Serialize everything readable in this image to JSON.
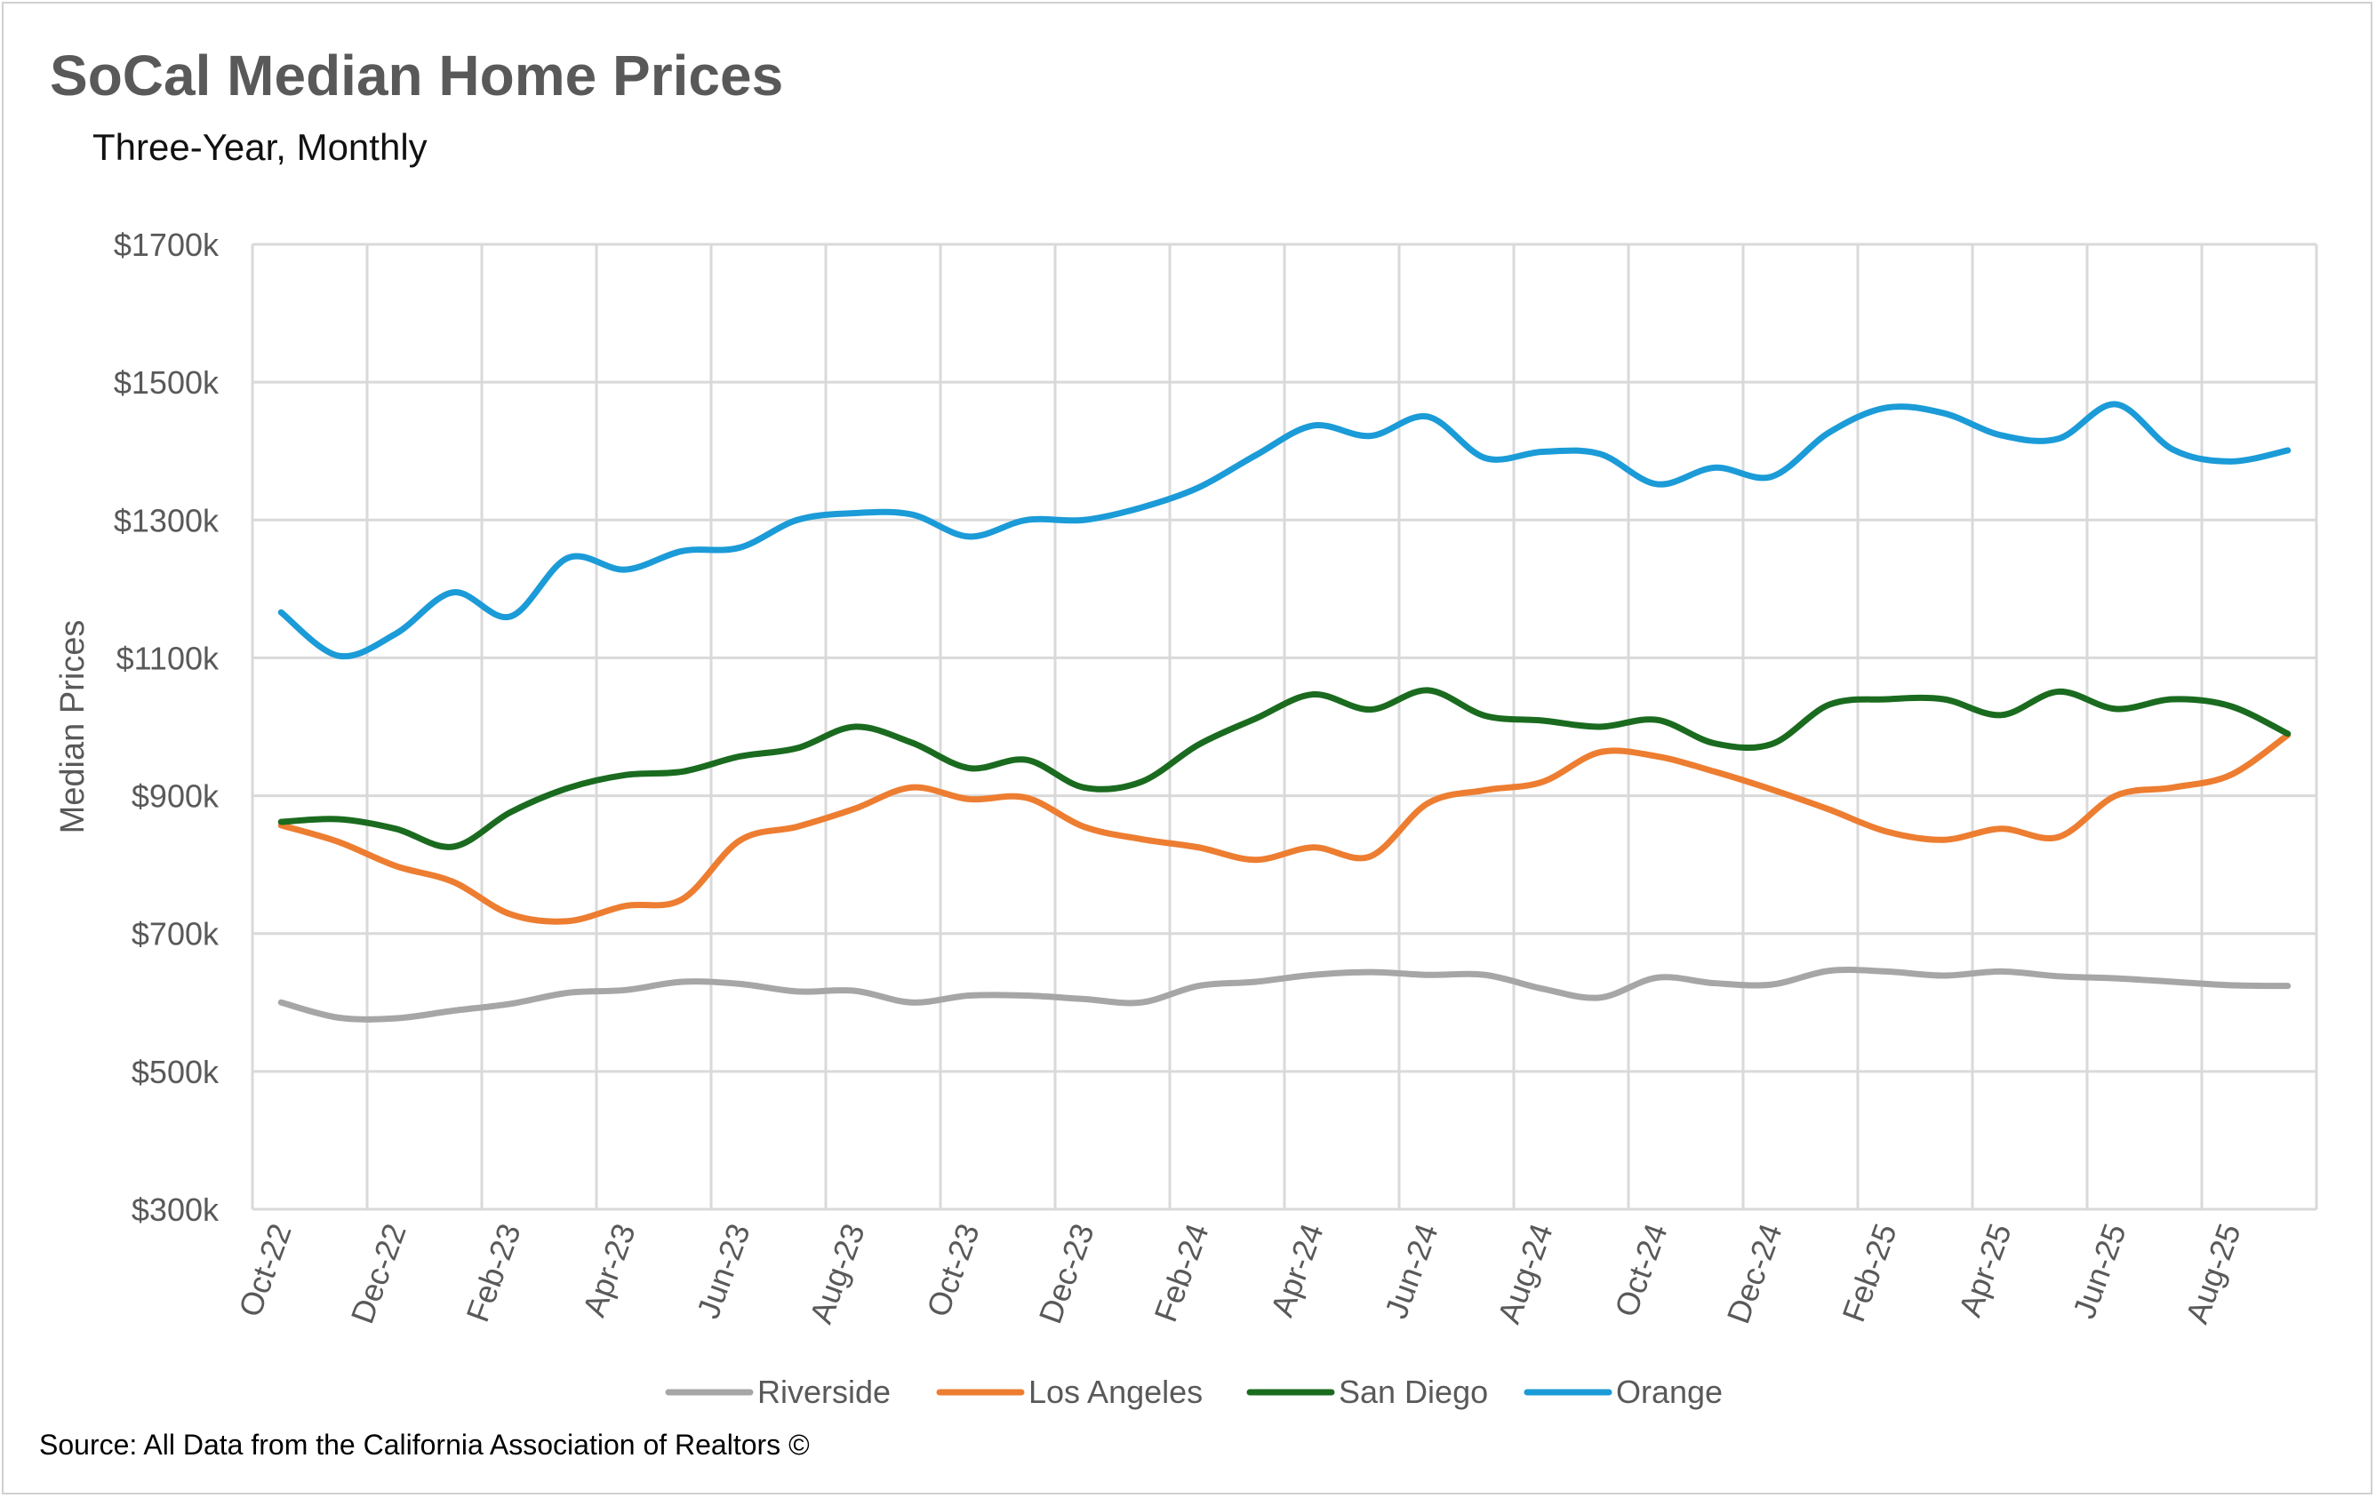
{
  "title": "SoCal Median Home Prices",
  "subtitle": "Three-Year, Monthly",
  "source": "Source: All Data from the California Association of Realtors ©",
  "chart_data": {
    "type": "line",
    "title": "SoCal Median Home Prices",
    "subtitle": "Three-Year, Monthly",
    "xlabel": "",
    "ylabel": "Median Prices",
    "ylim": [
      300,
      1700
    ],
    "y_ticks": [
      300,
      500,
      700,
      900,
      1100,
      1300,
      1500,
      1700
    ],
    "y_tick_labels": [
      "$300k",
      "$500k",
      "$700k",
      "$900k",
      "$1100k",
      "$1300k",
      "$1500k",
      "$1700k"
    ],
    "x_tick_labels": [
      "Oct-22",
      "Dec-22",
      "Feb-23",
      "Apr-23",
      "Jun-23",
      "Aug-23",
      "Oct-23",
      "Dec-23",
      "Feb-24",
      "Apr-24",
      "Jun-24",
      "Aug-24",
      "Oct-24",
      "Dec-24",
      "Feb-25",
      "Apr-25",
      "Jun-25",
      "Aug-25"
    ],
    "x": [
      "Oct-22",
      "Nov-22",
      "Dec-22",
      "Jan-23",
      "Feb-23",
      "Mar-23",
      "Apr-23",
      "May-23",
      "Jun-23",
      "Jul-23",
      "Aug-23",
      "Sep-23",
      "Oct-23",
      "Nov-23",
      "Dec-23",
      "Jan-24",
      "Feb-24",
      "Mar-24",
      "Apr-24",
      "May-24",
      "Jun-24",
      "Jul-24",
      "Aug-24",
      "Sep-24",
      "Oct-24",
      "Nov-24",
      "Dec-24",
      "Jan-25",
      "Feb-25",
      "Mar-25",
      "Apr-25",
      "May-25",
      "Jun-25",
      "Jul-25",
      "Aug-25",
      "Sep-25"
    ],
    "grid": true,
    "legend_position": "bottom",
    "series": [
      {
        "name": "Riverside",
        "color": "#a6a6a6",
        "values": [
          600,
          578,
          577,
          588,
          598,
          614,
          618,
          630,
          627,
          616,
          617,
          600,
          610,
          610,
          605,
          600,
          624,
          630,
          640,
          644,
          640,
          640,
          620,
          607,
          636,
          628,
          626,
          646,
          645,
          639,
          645,
          638,
          635,
          630,
          625,
          624
        ]
      },
      {
        "name": "Los Angeles",
        "color": "#ed7d31",
        "values": [
          857,
          833,
          798,
          775,
          728,
          718,
          740,
          750,
          835,
          855,
          881,
          912,
          895,
          897,
          855,
          837,
          825,
          807,
          825,
          812,
          889,
          908,
          920,
          963,
          957,
          935,
          909,
          880,
          848,
          836,
          852,
          840,
          900,
          912,
          930,
          988
        ]
      },
      {
        "name": "San Diego",
        "color": "#1a6b1f",
        "values": [
          862,
          866,
          852,
          826,
          876,
          911,
          930,
          935,
          957,
          969,
          1000,
          977,
          940,
          952,
          912,
          920,
          974,
          1012,
          1047,
          1025,
          1053,
          1016,
          1009,
          1000,
          1010,
          976,
          975,
          1032,
          1040,
          1040,
          1017,
          1051,
          1026,
          1040,
          1030,
          990
        ]
      },
      {
        "name": "Orange",
        "color": "#1b9bd7",
        "values": [
          1166,
          1103,
          1135,
          1195,
          1160,
          1245,
          1228,
          1255,
          1260,
          1300,
          1310,
          1308,
          1276,
          1300,
          1300,
          1318,
          1347,
          1394,
          1437,
          1422,
          1450,
          1390,
          1399,
          1396,
          1352,
          1376,
          1363,
          1427,
          1463,
          1455,
          1423,
          1418,
          1468,
          1402,
          1385,
          1401
        ]
      }
    ]
  }
}
